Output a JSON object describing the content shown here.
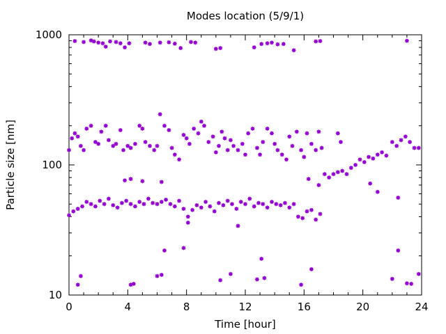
{
  "chart_data": {
    "type": "scatter",
    "title": "Modes location (5/9/1)",
    "xlabel": "Time [hour]",
    "ylabel": "Particle size [nm]",
    "xlim": [
      0,
      24
    ],
    "ylim": [
      10,
      1000
    ],
    "yscale": "log",
    "x_ticks": [
      0,
      4,
      8,
      12,
      16,
      20,
      24
    ],
    "x_tick_labels": [
      "0",
      "4",
      "8",
      "12",
      "16",
      "20",
      "24"
    ],
    "y_ticks": [
      10,
      100,
      1000
    ],
    "y_tick_labels": [
      "10",
      "100",
      "1000"
    ],
    "grid": false,
    "legend": "none",
    "marker_color": "#9400D3",
    "series": [
      {
        "values": [
          [
            0.4,
            895
          ],
          [
            1.0,
            880
          ],
          [
            1.5,
            905
          ],
          [
            1.7,
            890
          ],
          [
            2.0,
            870
          ],
          [
            2.3,
            860
          ],
          [
            2.5,
            810
          ],
          [
            2.8,
            890
          ],
          [
            3.2,
            880
          ],
          [
            3.5,
            860
          ],
          [
            3.8,
            800
          ],
          [
            4.1,
            860
          ],
          [
            5.2,
            870
          ],
          [
            5.5,
            850
          ],
          [
            6.2,
            870
          ],
          [
            6.8,
            875
          ],
          [
            7.2,
            855
          ],
          [
            7.6,
            790
          ],
          [
            8.3,
            880
          ],
          [
            8.6,
            870
          ],
          [
            10.0,
            780
          ],
          [
            10.3,
            790
          ],
          [
            12.6,
            800
          ],
          [
            13.1,
            850
          ],
          [
            13.5,
            860
          ],
          [
            13.8,
            870
          ],
          [
            14.2,
            845
          ],
          [
            14.6,
            850
          ],
          [
            15.3,
            760
          ],
          [
            16.8,
            890
          ],
          [
            17.1,
            895
          ],
          [
            23.0,
            900
          ],
          [
            0.0,
            130
          ],
          [
            0.2,
            160
          ],
          [
            0.4,
            175
          ],
          [
            0.6,
            165
          ],
          [
            0.8,
            140
          ],
          [
            1.0,
            130
          ],
          [
            1.2,
            190
          ],
          [
            1.5,
            200
          ],
          [
            1.8,
            150
          ],
          [
            2.0,
            145
          ],
          [
            2.2,
            180
          ],
          [
            2.5,
            200
          ],
          [
            2.7,
            155
          ],
          [
            3.0,
            140
          ],
          [
            3.2,
            145
          ],
          [
            3.5,
            185
          ],
          [
            3.7,
            130
          ],
          [
            4.0,
            140
          ],
          [
            4.2,
            135
          ],
          [
            4.5,
            145
          ],
          [
            4.8,
            200
          ],
          [
            5.0,
            190
          ],
          [
            5.2,
            150
          ],
          [
            5.5,
            140
          ],
          [
            5.8,
            130
          ],
          [
            6.0,
            140
          ],
          [
            6.2,
            245
          ],
          [
            6.5,
            200
          ],
          [
            6.8,
            185
          ],
          [
            7.0,
            135
          ],
          [
            7.2,
            120
          ],
          [
            7.5,
            110
          ],
          [
            7.8,
            170
          ],
          [
            8.0,
            160
          ],
          [
            8.2,
            145
          ],
          [
            8.5,
            190
          ],
          [
            8.8,
            175
          ],
          [
            9.0,
            215
          ],
          [
            9.2,
            200
          ],
          [
            9.5,
            150
          ],
          [
            9.8,
            165
          ],
          [
            10.0,
            125
          ],
          [
            10.2,
            140
          ],
          [
            10.4,
            180
          ],
          [
            10.6,
            160
          ],
          [
            10.8,
            130
          ],
          [
            11.0,
            155
          ],
          [
            11.2,
            140
          ],
          [
            11.5,
            130
          ],
          [
            11.8,
            145
          ],
          [
            12.0,
            120
          ],
          [
            12.2,
            175
          ],
          [
            12.5,
            190
          ],
          [
            12.8,
            135
          ],
          [
            13.0,
            120
          ],
          [
            13.2,
            150
          ],
          [
            13.5,
            190
          ],
          [
            13.8,
            175
          ],
          [
            14.0,
            145
          ],
          [
            14.2,
            130
          ],
          [
            14.5,
            120
          ],
          [
            14.8,
            110
          ],
          [
            15.0,
            165
          ],
          [
            15.2,
            140
          ],
          [
            15.5,
            180
          ],
          [
            15.8,
            130
          ],
          [
            16.0,
            115
          ],
          [
            16.2,
            175
          ],
          [
            16.5,
            145
          ],
          [
            16.8,
            130
          ],
          [
            17.0,
            180
          ],
          [
            17.2,
            135
          ],
          [
            0.0,
            41
          ],
          [
            0.3,
            44
          ],
          [
            0.6,
            46
          ],
          [
            0.9,
            48
          ],
          [
            1.2,
            52
          ],
          [
            1.5,
            50
          ],
          [
            1.8,
            48
          ],
          [
            2.1,
            53
          ],
          [
            2.4,
            50
          ],
          [
            2.7,
            55
          ],
          [
            3.0,
            49
          ],
          [
            3.3,
            47
          ],
          [
            3.6,
            51
          ],
          [
            3.9,
            53
          ],
          [
            4.2,
            50
          ],
          [
            4.5,
            48
          ],
          [
            4.8,
            52
          ],
          [
            5.1,
            50
          ],
          [
            5.4,
            55
          ],
          [
            5.7,
            51
          ],
          [
            6.0,
            50
          ],
          [
            6.3,
            52
          ],
          [
            6.6,
            54
          ],
          [
            6.9,
            50
          ],
          [
            7.2,
            48
          ],
          [
            7.5,
            53
          ],
          [
            7.8,
            46
          ],
          [
            8.1,
            40
          ],
          [
            8.4,
            45
          ],
          [
            8.7,
            49
          ],
          [
            9.0,
            47
          ],
          [
            9.3,
            52
          ],
          [
            9.6,
            48
          ],
          [
            9.9,
            44
          ],
          [
            10.2,
            51
          ],
          [
            10.5,
            49
          ],
          [
            10.8,
            53
          ],
          [
            11.1,
            50
          ],
          [
            11.4,
            46
          ],
          [
            11.7,
            52
          ],
          [
            12.0,
            50
          ],
          [
            12.3,
            55
          ],
          [
            12.6,
            48
          ],
          [
            12.9,
            51
          ],
          [
            13.2,
            50
          ],
          [
            13.5,
            47
          ],
          [
            13.8,
            52
          ],
          [
            14.1,
            50
          ],
          [
            14.4,
            49
          ],
          [
            14.7,
            51
          ],
          [
            15.0,
            47
          ],
          [
            15.3,
            50
          ],
          [
            15.6,
            40
          ],
          [
            15.9,
            39
          ],
          [
            16.2,
            44
          ],
          [
            16.5,
            45
          ],
          [
            16.8,
            38
          ],
          [
            17.1,
            42
          ],
          [
            17.4,
            85
          ],
          [
            17.7,
            80
          ],
          [
            18.0,
            85
          ],
          [
            18.3,
            88
          ],
          [
            18.6,
            90
          ],
          [
            18.9,
            85
          ],
          [
            19.2,
            95
          ],
          [
            19.5,
            100
          ],
          [
            19.8,
            110
          ],
          [
            20.1,
            105
          ],
          [
            20.4,
            115
          ],
          [
            20.7,
            112
          ],
          [
            21.0,
            120
          ],
          [
            21.3,
            125
          ],
          [
            21.6,
            118
          ],
          [
            22.0,
            150
          ],
          [
            22.3,
            140
          ],
          [
            22.6,
            155
          ],
          [
            22.9,
            165
          ],
          [
            23.2,
            150
          ],
          [
            23.5,
            135
          ],
          [
            23.8,
            135
          ],
          [
            3.8,
            76
          ],
          [
            4.2,
            78
          ],
          [
            5.0,
            75
          ],
          [
            6.3,
            74
          ],
          [
            8.1,
            36
          ],
          [
            11.5,
            34
          ],
          [
            16.3,
            78
          ],
          [
            17.0,
            70
          ],
          [
            18.3,
            175
          ],
          [
            18.5,
            150
          ],
          [
            20.5,
            72
          ],
          [
            21.0,
            62
          ],
          [
            22.4,
            56
          ],
          [
            0.6,
            12
          ],
          [
            0.8,
            14
          ],
          [
            4.2,
            12
          ],
          [
            4.4,
            12.2
          ],
          [
            6.0,
            14
          ],
          [
            6.3,
            14.3
          ],
          [
            6.5,
            22
          ],
          [
            7.8,
            23
          ],
          [
            10.3,
            13
          ],
          [
            11.0,
            14.5
          ],
          [
            12.8,
            13.2
          ],
          [
            13.1,
            19
          ],
          [
            13.3,
            13.5
          ],
          [
            15.8,
            12
          ],
          [
            16.5,
            15.8
          ],
          [
            22.0,
            13.3
          ],
          [
            22.4,
            22
          ],
          [
            23.0,
            12.3
          ],
          [
            23.3,
            12.2
          ],
          [
            23.8,
            14.5
          ]
        ]
      }
    ]
  }
}
